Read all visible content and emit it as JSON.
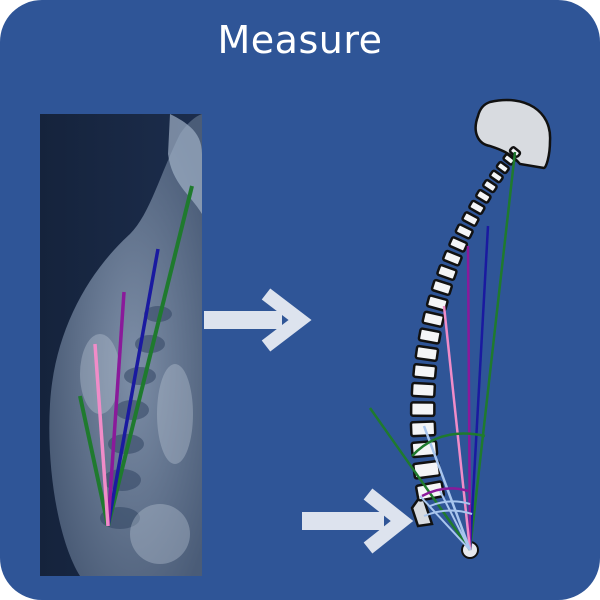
{
  "title": "Measure",
  "colors": {
    "background": "#2f5597",
    "arrow": "#dde3ee",
    "green": "#1f7a2e",
    "navy": "#1a1aa0",
    "purple": "#8a1a9a",
    "pink": "#f08cc8",
    "lightblue": "#a9c6ee"
  },
  "icons": {
    "arrow_main": "right-arrow-icon",
    "arrow_low": "right-arrow-icon"
  }
}
